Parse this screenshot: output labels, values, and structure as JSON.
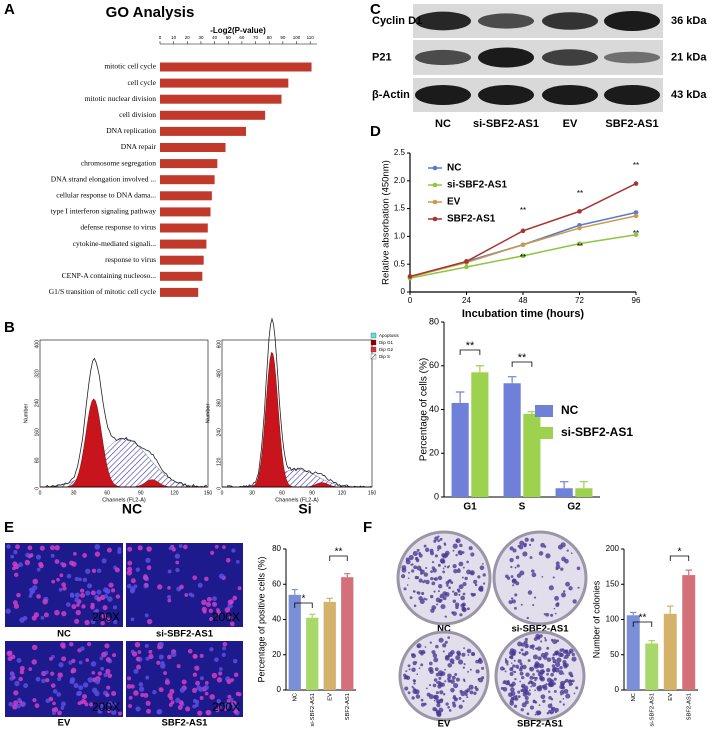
{
  "panel_labels": [
    "A",
    "B",
    "C",
    "D",
    "E",
    "F"
  ],
  "chart_data": [
    {
      "type": "bar",
      "horizontal": true,
      "title": "GO Analysis",
      "x_label": "-Log2(P-value)",
      "categories": [
        "mitotic cell cycle",
        "cell cycle",
        "mitotic nuclear division",
        "cell division",
        "DNA replication",
        "DNA repair",
        "chromosome segregation",
        "DNA strand elongation involved ...",
        "cellular response to DNA dama...",
        "type I interferon signaling pathway",
        "defense response to virus",
        "cytokine-mediated signali...",
        "response to virus",
        "CENP-A containing nucleoso...",
        "G1/S transition of mitotic cell cycle"
      ],
      "values": [
        111,
        94,
        89,
        77,
        63,
        48,
        42,
        40,
        38,
        37,
        35,
        34,
        32,
        31,
        28
      ],
      "color": "#c0392b",
      "xlim": [
        0,
        115
      ],
      "xticks": [
        0,
        10,
        20,
        30,
        40,
        50,
        60,
        70,
        80,
        90,
        100,
        110
      ]
    },
    {
      "type": "bar",
      "y_label": "Percentage of cells (%)",
      "categories": [
        "G1",
        "S",
        "G2"
      ],
      "series": [
        {
          "name": "NC",
          "color": "#6f80d8",
          "values": [
            43,
            52,
            4
          ],
          "errors": [
            5,
            3,
            3
          ]
        },
        {
          "name": "si-SBF2-AS1",
          "color": "#9dd24e",
          "values": [
            57,
            38,
            4
          ],
          "errors": [
            3,
            1,
            3
          ]
        }
      ],
      "ylim": [
        0,
        80
      ],
      "yticks": [
        0,
        20,
        40,
        60,
        80
      ],
      "annotations": [
        "**",
        "**"
      ]
    },
    {
      "type": "line",
      "x_label": "Incubation time (hours)",
      "y_label": "Relative  absorbation (450nm)",
      "x": [
        0,
        24,
        48,
        72,
        96
      ],
      "series": [
        {
          "name": "NC",
          "color": "#5a78d0",
          "values": [
            0.27,
            0.55,
            0.85,
            1.2,
            1.43
          ]
        },
        {
          "name": "si-SBF2-AS1",
          "color": "#8dc63f",
          "values": [
            0.25,
            0.45,
            0.65,
            0.87,
            1.03
          ]
        },
        {
          "name": "EV",
          "color": "#c89a4a",
          "values": [
            0.27,
            0.53,
            0.85,
            1.15,
            1.37
          ]
        },
        {
          "name": "SBF2-AS1",
          "color": "#a8322e",
          "values": [
            0.28,
            0.55,
            1.1,
            1.45,
            1.95
          ]
        }
      ],
      "xlim": [
        0,
        96
      ],
      "xticks": [
        0,
        24,
        48,
        72,
        96
      ],
      "ylim": [
        0,
        2.5
      ],
      "yticks": [
        0,
        0.5,
        {
          "value": 1,
          "label": "1.0"
        },
        1.5,
        {
          "value": 2,
          "label": "2.0"
        },
        2.5
      ],
      "annotations": [
        "**",
        "**",
        "**",
        "**",
        "**",
        "**"
      ]
    },
    {
      "type": "bar",
      "y_label": "Percentage of positive cells (%)",
      "categories": [
        "NC",
        "si-SBF2-AS1",
        "EV",
        "SBF2-AS1"
      ],
      "values": [
        54,
        41,
        50,
        64
      ],
      "errors": [
        3,
        2,
        2,
        2
      ],
      "colors": [
        "#7b8fd8",
        "#a8d86a",
        "#d4b26a",
        "#d4707a"
      ],
      "ylim": [
        0,
        80
      ],
      "yticks": [
        0,
        20,
        40,
        60,
        80
      ],
      "annotations": [
        "*",
        "**"
      ]
    },
    {
      "type": "bar",
      "y_label": "Number of colonies",
      "categories": [
        "NC",
        "si-SBF2-AS1",
        "EV",
        "SBF2-AS1"
      ],
      "values": [
        106,
        66,
        108,
        163
      ],
      "errors": [
        4,
        4,
        11,
        7
      ],
      "colors": [
        "#7b8fd8",
        "#a8d86a",
        "#d4b26a",
        "#d4707a"
      ],
      "ylim": [
        0,
        200
      ],
      "yticks": [
        0,
        50,
        100,
        150,
        200
      ],
      "annotations": [
        "**",
        "*"
      ]
    }
  ],
  "flow_cytometry": {
    "y_label": "Number",
    "x_label": "Channels (FL2-A)",
    "xticks": [
      0,
      30,
      60,
      90,
      120,
      150
    ],
    "samples": [
      {
        "name": "NC",
        "yticks": [
          0,
          80,
          160,
          240,
          320,
          400
        ]
      },
      {
        "name": "Si",
        "yticks": [
          0,
          120,
          240,
          360,
          480,
          600
        ]
      }
    ],
    "legend": [
      "Apoptosis",
      "Dip G1",
      "Dip G2",
      "Dip S"
    ]
  },
  "western_blot": {
    "proteins": [
      {
        "name": "Cyclin D1",
        "size": "36 kDa"
      },
      {
        "name": "P21",
        "size": "21 kDa"
      },
      {
        "name": "β-Actin",
        "size": "43 kDa"
      }
    ],
    "lanes": [
      "NC",
      "si-SBF2-AS1",
      "EV",
      "SBF2-AS1"
    ]
  },
  "immunofluorescence": {
    "magnification": "200X",
    "samples": [
      "NC",
      "si-SBF2-AS1",
      "EV",
      "SBF2-AS1"
    ]
  },
  "colony_formation": {
    "samples": [
      "NC",
      "si-SBF2-AS1",
      "EV",
      "SBF2-AS1"
    ]
  }
}
